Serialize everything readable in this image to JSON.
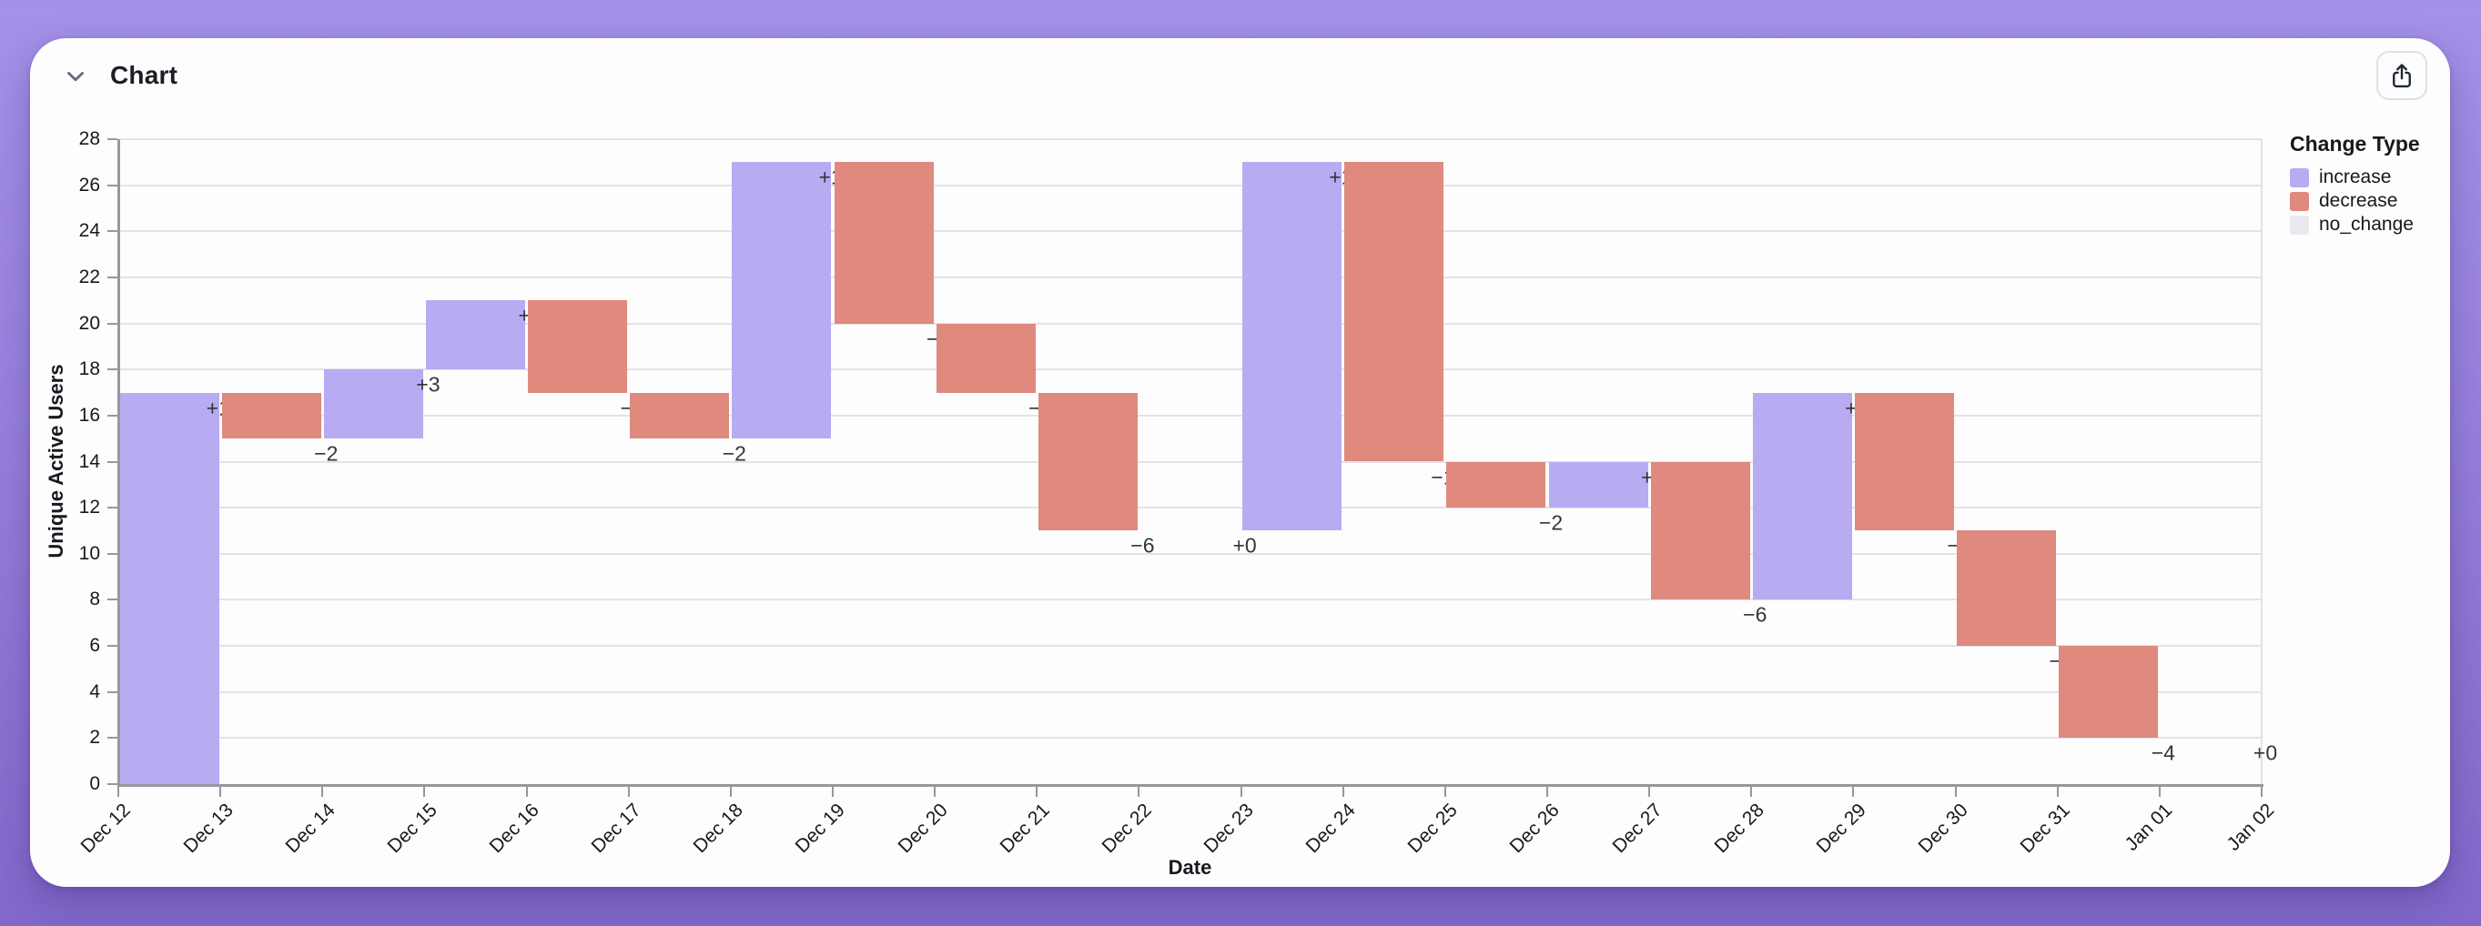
{
  "header": {
    "title": "Chart",
    "icons": {
      "collapse": "chevron-down",
      "share": "share-arrow-up-from-square"
    }
  },
  "chart_data": {
    "type": "bar",
    "subtype": "waterfall",
    "title": "Chart",
    "xlabel": "Date",
    "ylabel": "Unique Active Users",
    "ylim": [
      0,
      28
    ],
    "ytick_step": 2,
    "ytick_labels": [
      "0",
      "2",
      "4",
      "6",
      "8",
      "10",
      "12",
      "14",
      "16",
      "18",
      "20",
      "22",
      "24",
      "26",
      "28"
    ],
    "categories": [
      "Dec 12",
      "Dec 13",
      "Dec 14",
      "Dec 15",
      "Dec 16",
      "Dec 17",
      "Dec 18",
      "Dec 19",
      "Dec 20",
      "Dec 21",
      "Dec 22",
      "Dec 23",
      "Dec 24",
      "Dec 25",
      "Dec 26",
      "Dec 27",
      "Dec 28",
      "Dec 29",
      "Dec 30",
      "Dec 31",
      "Jan 01",
      "Jan 02"
    ],
    "grid": true,
    "legend": {
      "title": "Change Type",
      "position": "right",
      "items": [
        {
          "label": "increase",
          "color": "#b8abf2"
        },
        {
          "label": "decrease",
          "color": "#e0897e"
        },
        {
          "label": "no_change",
          "color": "#e9e9ee"
        }
      ]
    },
    "colors": {
      "increase": "#b8abf2",
      "decrease": "#e0897e",
      "no_change": "#e9e9ee"
    },
    "bars": [
      {
        "x_start": "Dec 12",
        "x_end": "Dec 13",
        "from": 0,
        "to": 17,
        "change": 17,
        "label": "+17",
        "type": "increase"
      },
      {
        "x_start": "Dec 13",
        "x_end": "Dec 14",
        "from": 17,
        "to": 15,
        "change": -2,
        "label": "−2",
        "type": "decrease"
      },
      {
        "x_start": "Dec 14",
        "x_end": "Dec 15",
        "from": 15,
        "to": 18,
        "change": 3,
        "label": "+3",
        "type": "increase"
      },
      {
        "x_start": "Dec 15",
        "x_end": "Dec 16",
        "from": 18,
        "to": 21,
        "change": 3,
        "label": "+3",
        "type": "increase"
      },
      {
        "x_start": "Dec 16",
        "x_end": "Dec 17",
        "from": 21,
        "to": 17,
        "change": -4,
        "label": "−4",
        "type": "decrease"
      },
      {
        "x_start": "Dec 17",
        "x_end": "Dec 18",
        "from": 17,
        "to": 15,
        "change": -2,
        "label": "−2",
        "type": "decrease"
      },
      {
        "x_start": "Dec 18",
        "x_end": "Dec 19",
        "from": 15,
        "to": 27,
        "change": 12,
        "label": "+12",
        "type": "increase"
      },
      {
        "x_start": "Dec 19",
        "x_end": "Dec 20",
        "from": 27,
        "to": 20,
        "change": -7,
        "label": "−7",
        "type": "decrease"
      },
      {
        "x_start": "Dec 20",
        "x_end": "Dec 21",
        "from": 20,
        "to": 17,
        "change": -3,
        "label": "−3",
        "type": "decrease"
      },
      {
        "x_start": "Dec 21",
        "x_end": "Dec 22",
        "from": 17,
        "to": 11,
        "change": -6,
        "label": "−6",
        "type": "decrease"
      },
      {
        "x_start": "Dec 22",
        "x_end": "Dec 23",
        "from": 11,
        "to": 11,
        "change": 0,
        "label": "+0",
        "type": "no_change"
      },
      {
        "x_start": "Dec 23",
        "x_end": "Dec 24",
        "from": 11,
        "to": 27,
        "change": 16,
        "label": "+16",
        "type": "increase"
      },
      {
        "x_start": "Dec 24",
        "x_end": "Dec 25",
        "from": 27,
        "to": 14,
        "change": -13,
        "label": "−13",
        "type": "decrease"
      },
      {
        "x_start": "Dec 25",
        "x_end": "Dec 26",
        "from": 14,
        "to": 12,
        "change": -2,
        "label": "−2",
        "type": "decrease"
      },
      {
        "x_start": "Dec 26",
        "x_end": "Dec 27",
        "from": 12,
        "to": 14,
        "change": 2,
        "label": "+2",
        "type": "increase"
      },
      {
        "x_start": "Dec 27",
        "x_end": "Dec 28",
        "from": 14,
        "to": 8,
        "change": -6,
        "label": "−6",
        "type": "decrease"
      },
      {
        "x_start": "Dec 28",
        "x_end": "Dec 29",
        "from": 8,
        "to": 17,
        "change": 9,
        "label": "+9",
        "type": "increase"
      },
      {
        "x_start": "Dec 29",
        "x_end": "Dec 30",
        "from": 17,
        "to": 11,
        "change": -6,
        "label": "−6",
        "type": "decrease"
      },
      {
        "x_start": "Dec 30",
        "x_end": "Dec 31",
        "from": 11,
        "to": 6,
        "change": -5,
        "label": "−5",
        "type": "decrease"
      },
      {
        "x_start": "Dec 31",
        "x_end": "Jan 01",
        "from": 6,
        "to": 2,
        "change": -4,
        "label": "−4",
        "type": "decrease"
      },
      {
        "x_start": "Jan 01",
        "x_end": "Jan 02",
        "from": 2,
        "to": 2,
        "change": 0,
        "label": "+0",
        "type": "no_change"
      }
    ]
  }
}
